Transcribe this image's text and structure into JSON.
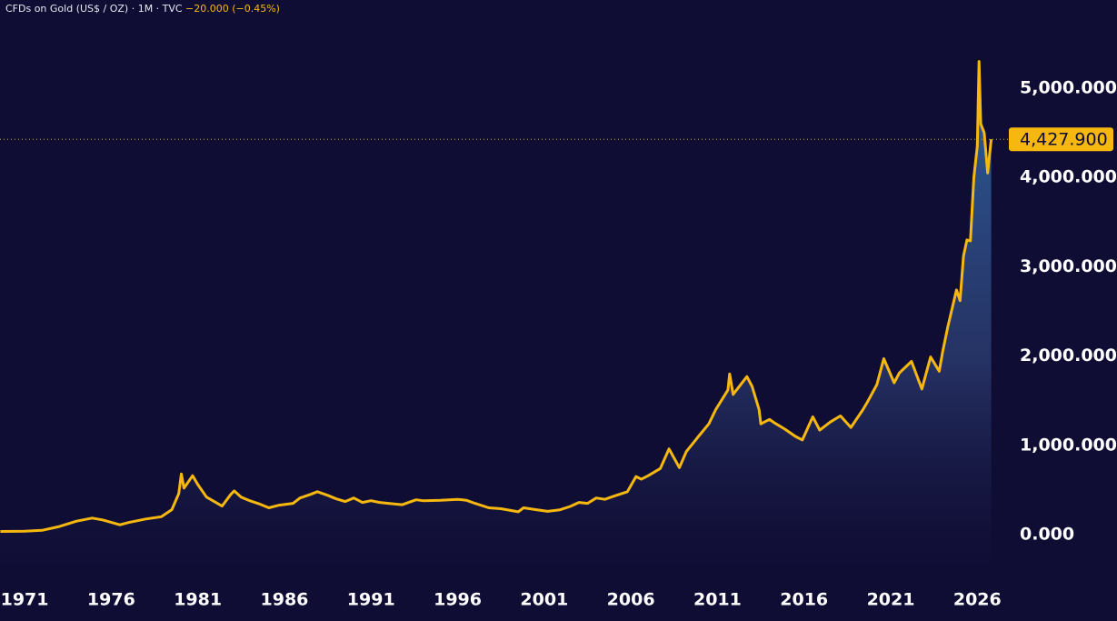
{
  "chart_data": {
    "type": "area",
    "title": "CFDs on Gold (US$ / OZ) · 1M · TVC",
    "subtitle": "−20.000 (−0.45%)",
    "x": [
      1969.6,
      1970.5,
      1971.0,
      1972.0,
      1973.0,
      1974.0,
      1974.9,
      1975.5,
      1976.5,
      1977.0,
      1978.0,
      1978.9,
      1979.5,
      1979.9,
      1980.05,
      1980.2,
      1980.7,
      1981.0,
      1981.5,
      1982.4,
      1982.9,
      1983.1,
      1983.5,
      1984.0,
      1984.6,
      1985.1,
      1985.7,
      1986.5,
      1986.9,
      1987.5,
      1987.9,
      1988.5,
      1989.0,
      1989.5,
      1990.0,
      1990.5,
      1991.0,
      1991.5,
      1992.0,
      1992.8,
      1993.6,
      1994.0,
      1995.0,
      1996.0,
      1996.5,
      1997.0,
      1997.8,
      1998.5,
      1999.5,
      1999.8,
      2000.5,
      2001.2,
      2001.9,
      2002.5,
      2003.0,
      2003.5,
      2004.0,
      2004.5,
      2005.0,
      2005.8,
      2006.3,
      2006.6,
      2007.0,
      2007.7,
      2008.2,
      2008.8,
      2009.2,
      2009.9,
      2010.5,
      2010.9,
      2011.6,
      2011.7,
      2011.9,
      2012.7,
      2013.0,
      2013.4,
      2013.5,
      2014.0,
      2014.3,
      2014.9,
      2015.5,
      2015.9,
      2016.5,
      2016.9,
      2017.5,
      2018.1,
      2018.7,
      2019.4,
      2019.7,
      2020.2,
      2020.6,
      2021.2,
      2021.5,
      2022.2,
      2022.8,
      2023.3,
      2023.8,
      2024.0,
      2024.3,
      2024.8,
      2025.0,
      2025.2,
      2025.4,
      2025.6,
      2025.8,
      2026.0,
      2026.1,
      2026.2,
      2026.4,
      2026.6,
      2026.8
    ],
    "values": [
      35,
      36,
      38,
      48,
      90,
      150,
      185,
      165,
      110,
      135,
      175,
      200,
      280,
      460,
      680,
      520,
      660,
      560,
      420,
      320,
      450,
      490,
      420,
      380,
      340,
      300,
      330,
      350,
      410,
      450,
      480,
      440,
      400,
      370,
      410,
      360,
      380,
      360,
      350,
      335,
      390,
      380,
      385,
      395,
      385,
      350,
      300,
      290,
      255,
      300,
      280,
      260,
      278,
      315,
      360,
      350,
      410,
      395,
      430,
      480,
      650,
      620,
      660,
      740,
      960,
      750,
      930,
      1100,
      1240,
      1400,
      1620,
      1800,
      1570,
      1770,
      1660,
      1400,
      1240,
      1290,
      1250,
      1180,
      1100,
      1060,
      1320,
      1170,
      1260,
      1330,
      1200,
      1400,
      1500,
      1680,
      1970,
      1700,
      1810,
      1940,
      1630,
      1990,
      1830,
      2050,
      2330,
      2740,
      2620,
      3120,
      3300,
      3290,
      4000,
      4350,
      5300,
      4600,
      4500,
      4050,
      4427.9
    ],
    "color": "#f6b80f",
    "last_price": {
      "value": 4427.9,
      "label": "4,427.900"
    },
    "xlim": [
      1969.58,
      2027.82
    ],
    "xticks": [
      1971,
      1976,
      1981,
      1986,
      1991,
      1996,
      2001,
      2006,
      2011,
      2016,
      2021,
      2026
    ],
    "ylim": [
      -428,
      5988
    ],
    "yticks": [
      {
        "value": 0,
        "label": "0.000"
      },
      {
        "value": 1000,
        "label": "1,000.000"
      },
      {
        "value": 2000,
        "label": "2,000.000"
      },
      {
        "value": 3000,
        "label": "3,000.000"
      },
      {
        "value": 4000,
        "label": "4,000.000"
      },
      {
        "value": 5000,
        "label": "5,000.000"
      }
    ]
  }
}
